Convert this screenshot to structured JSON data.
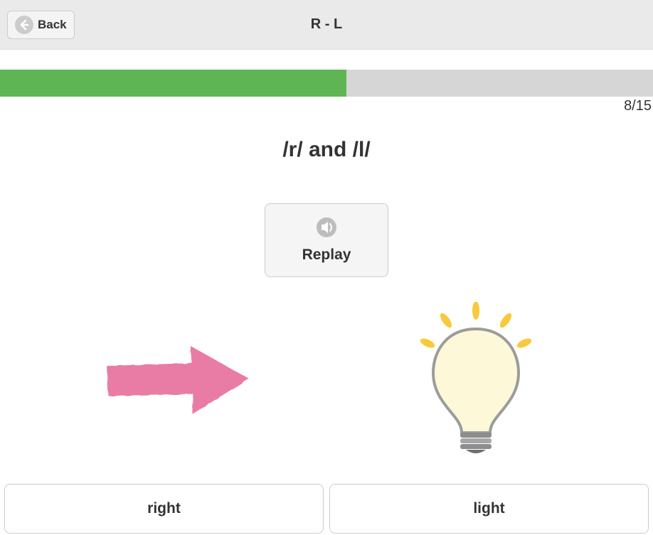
{
  "header": {
    "back_label": "Back",
    "title": "R - L"
  },
  "progress": {
    "current": 8,
    "total": 15,
    "percent": 53,
    "fill_color": "#5db553",
    "track_color": "#d6d6d6",
    "count_text": "8/15"
  },
  "lesson": {
    "subtitle": "/r/ and /l/",
    "replay_label": "Replay"
  },
  "images": {
    "left": {
      "name": "right-arrow",
      "arrow_color": "#e97ba4"
    },
    "right": {
      "name": "light-bulb",
      "bulb_fill": "#fdf9d8",
      "bulb_stroke": "#9c9c9c",
      "ray_color": "#f8c93a",
      "base_color": "#8d8d8d"
    }
  },
  "choices": {
    "left": "right",
    "right": "light"
  },
  "colors": {
    "header_bg": "#eaeaea",
    "button_bg": "#f5f5f5",
    "border": "#cccccc",
    "text": "#333333"
  }
}
